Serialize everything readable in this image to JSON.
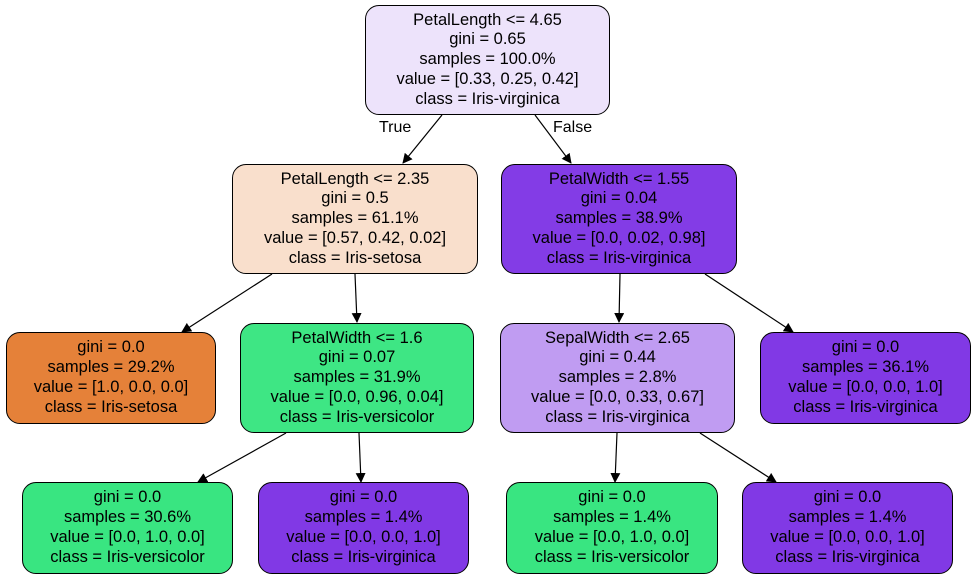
{
  "tree": {
    "nodes": {
      "n0": {
        "lines": [
          "PetalLength <= 4.65",
          "gini = 0.65",
          "samples = 100.0%",
          "value = [0.33, 0.25, 0.42]",
          "class = Iris-virginica"
        ],
        "color": "#ede3fb"
      },
      "n1": {
        "lines": [
          "PetalLength <= 2.35",
          "gini = 0.5",
          "samples = 61.1%",
          "value = [0.57, 0.42, 0.02]",
          "class = Iris-setosa"
        ],
        "color": "#f9dfcc"
      },
      "n2": {
        "lines": [
          "PetalWidth <= 1.55",
          "gini = 0.04",
          "samples = 38.9%",
          "value = [0.0, 0.02, 0.98]",
          "class = Iris-virginica"
        ],
        "color": "#833ce6"
      },
      "n3": {
        "lines": [
          "gini = 0.0",
          "samples = 29.2%",
          "value = [1.0, 0.0, 0.0]",
          "class = Iris-setosa"
        ],
        "color": "#e58139"
      },
      "n4": {
        "lines": [
          "PetalWidth <= 1.6",
          "gini = 0.07",
          "samples = 31.9%",
          "value = [0.0, 0.96, 0.04]",
          "class = Iris-versicolor"
        ],
        "color": "#3ee684"
      },
      "n5": {
        "lines": [
          "SepalWidth <= 2.65",
          "gini = 0.44",
          "samples = 2.8%",
          "value = [0.0, 0.33, 0.67]",
          "class = Iris-virginica"
        ],
        "color": "#c09cf2"
      },
      "n6": {
        "lines": [
          "gini = 0.0",
          "samples = 36.1%",
          "value = [0.0, 0.0, 1.0]",
          "class = Iris-virginica"
        ],
        "color": "#8139e5"
      },
      "n7": {
        "lines": [
          "gini = 0.0",
          "samples = 30.6%",
          "value = [0.0, 1.0, 0.0]",
          "class = Iris-versicolor"
        ],
        "color": "#39e581"
      },
      "n8": {
        "lines": [
          "gini = 0.0",
          "samples = 1.4%",
          "value = [0.0, 0.0, 1.0]",
          "class = Iris-virginica"
        ],
        "color": "#8139e5"
      },
      "n9": {
        "lines": [
          "gini = 0.0",
          "samples = 1.4%",
          "value = [0.0, 1.0, 0.0]",
          "class = Iris-versicolor"
        ],
        "color": "#39e581"
      },
      "n10": {
        "lines": [
          "gini = 0.0",
          "samples = 1.4%",
          "value = [0.0, 0.0, 1.0]",
          "class = Iris-virginica"
        ],
        "color": "#8139e5"
      }
    },
    "edge_labels": {
      "true_label": "True",
      "false_label": "False"
    }
  }
}
